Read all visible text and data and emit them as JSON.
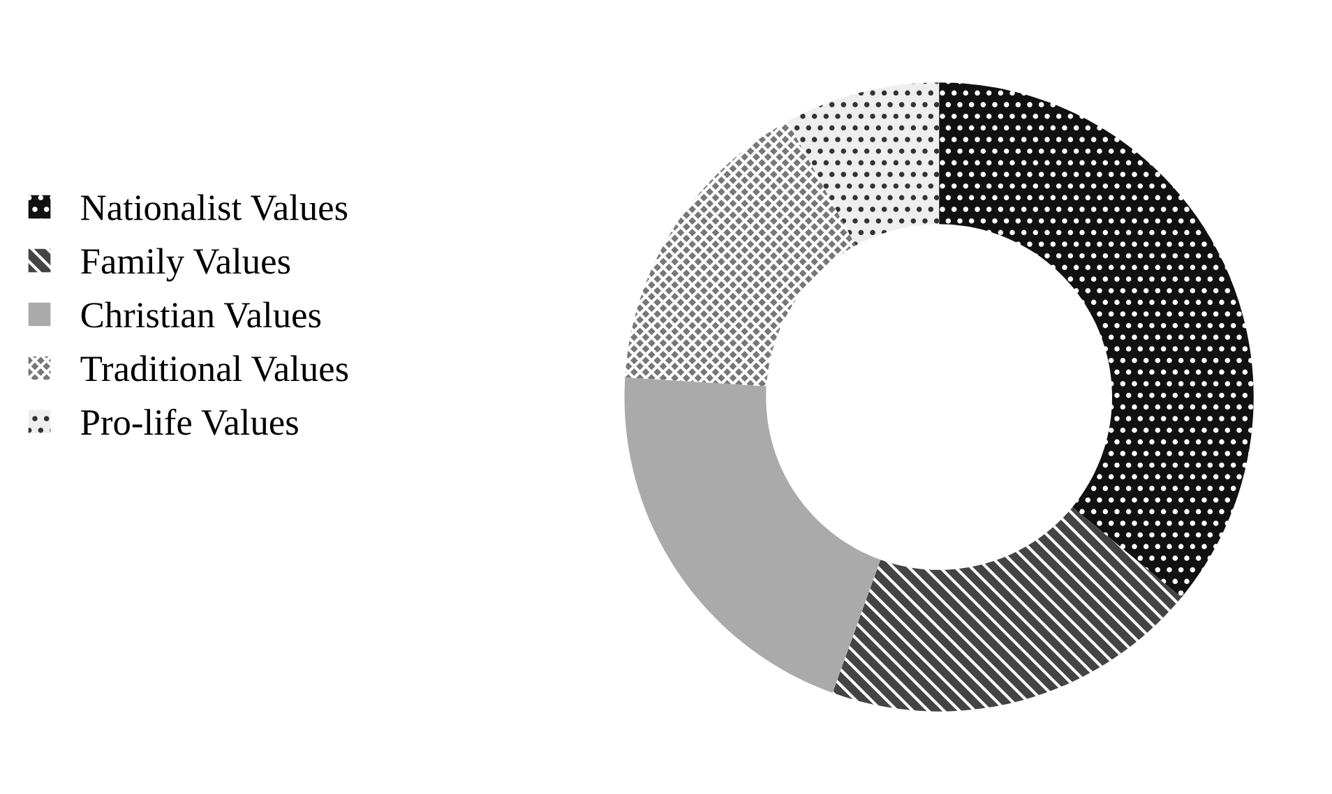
{
  "chart_data": {
    "type": "donut",
    "categories": [
      "Nationalist Values",
      "Family Values",
      "Christian Values",
      "Traditional Values",
      "Pro-life Values"
    ],
    "values": [
      36,
      19.5,
      20.5,
      16,
      8
    ],
    "colors": [
      "#111111",
      "#444444",
      "#aaaaaa",
      "#777777",
      "#eeeeee"
    ],
    "legend": "left"
  }
}
